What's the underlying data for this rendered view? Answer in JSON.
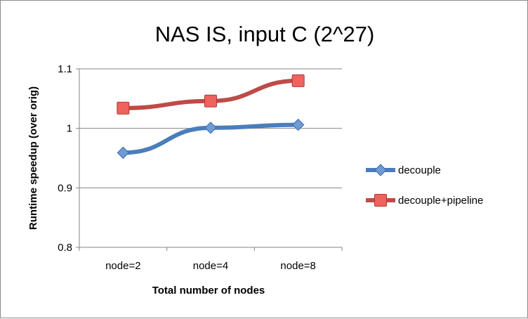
{
  "chart_data": {
    "type": "line",
    "title": "NAS IS, input C (2^27)",
    "xlabel": "Total number of nodes",
    "ylabel": "Runtime speedup (over orig)",
    "categories": [
      "node=2",
      "node=4",
      "node=8"
    ],
    "ylim": [
      0.8,
      1.1
    ],
    "yticks": [
      0.8,
      0.9,
      1,
      1.1
    ],
    "ytick_labels": [
      "0.8",
      "0.9",
      "1",
      "1.1"
    ],
    "grid": true,
    "legend_position": "right",
    "series": [
      {
        "name": "decouple",
        "values": [
          0.959,
          1.001,
          1.006
        ],
        "color": "#4a7ebb",
        "marker": "diamond"
      },
      {
        "name": "decouple+pipeline",
        "values": [
          1.034,
          1.046,
          1.08
        ],
        "color": "#be4b48",
        "marker": "square"
      }
    ]
  }
}
